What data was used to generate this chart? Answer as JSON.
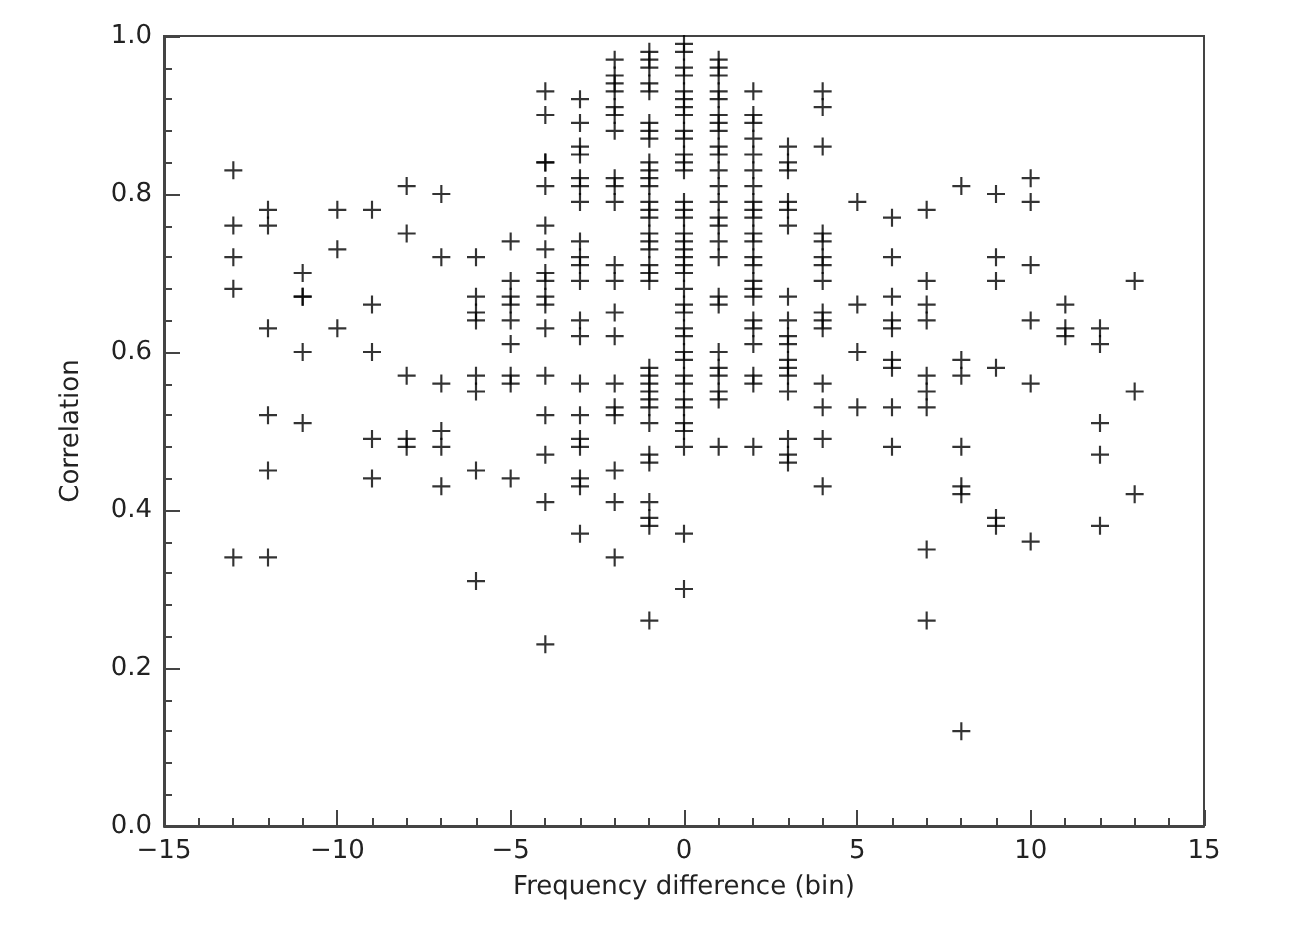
{
  "chart_data": {
    "type": "scatter",
    "xlabel": "Frequency difference (bin)",
    "ylabel": "Correlation",
    "marker": "cross",
    "color": "#000000",
    "xlim": [
      -15,
      15
    ],
    "xticks": [
      -15,
      -10,
      -5,
      0,
      5,
      10,
      15
    ],
    "ylim": [
      0,
      1
    ],
    "yticks": [
      {
        "value": 0,
        "label": "0.0"
      },
      0.2,
      0.4,
      0.6,
      0.8,
      {
        "value": 1,
        "label": "1.0"
      }
    ],
    "x": [
      -13,
      -13,
      -13,
      -13,
      -13,
      -12,
      -12,
      -12,
      -12,
      -12,
      -12,
      -11,
      -11,
      -11,
      -11,
      -11,
      -10,
      -10,
      -10,
      -9,
      -9,
      -9,
      -9,
      -9,
      -8,
      -8,
      -8,
      -8,
      -8,
      -7,
      -7,
      -7,
      -7,
      -7,
      -7,
      -6,
      -6,
      -6,
      -6,
      -6,
      -6,
      -6,
      -6,
      -5,
      -5,
      -5,
      -5,
      -5,
      -5,
      -5,
      -5,
      -5,
      -4,
      -4,
      -4,
      -4,
      -4,
      -4,
      -4,
      -4,
      -4,
      -4,
      -4,
      -4,
      -4,
      -4,
      -4,
      -4,
      -4,
      -3,
      -3,
      -3,
      -3,
      -3,
      -3,
      -3,
      -3,
      -3,
      -3,
      -3,
      -3,
      -3,
      -3,
      -3,
      -3,
      -3,
      -3,
      -3,
      -3,
      -2,
      -2,
      -2,
      -2,
      -2,
      -2,
      -2,
      -2,
      -2,
      -2,
      -2,
      -2,
      -2,
      -2,
      -2,
      -2,
      -2,
      -2,
      -2,
      -2,
      -1,
      -1,
      -1,
      -1,
      -1,
      -1,
      -1,
      -1,
      -1,
      -1,
      -1,
      -1,
      -1,
      -1,
      -1,
      -1,
      -1,
      -1,
      -1,
      -1,
      -1,
      -1,
      -1,
      -1,
      -1,
      -1,
      -1,
      -1,
      -1,
      -1,
      -1,
      -1,
      -1,
      -1,
      0,
      0,
      0,
      0,
      0,
      0,
      0,
      0,
      0,
      0,
      0,
      0,
      0,
      0,
      0,
      0,
      0,
      0,
      0,
      0,
      0,
      0,
      0,
      0,
      0,
      0,
      0,
      0,
      0,
      0,
      0,
      0,
      0,
      0,
      0,
      0,
      0,
      0,
      1,
      1,
      1,
      1,
      1,
      1,
      1,
      1,
      1,
      1,
      1,
      1,
      1,
      1,
      1,
      1,
      1,
      1,
      1,
      1,
      1,
      1,
      1,
      1,
      1,
      2,
      2,
      2,
      2,
      2,
      2,
      2,
      2,
      2,
      2,
      2,
      2,
      2,
      2,
      2,
      2,
      2,
      2,
      2,
      2,
      2,
      2,
      2,
      3,
      3,
      3,
      3,
      3,
      3,
      3,
      3,
      3,
      3,
      3,
      3,
      3,
      3,
      3,
      3,
      3,
      4,
      4,
      4,
      4,
      4,
      4,
      4,
      4,
      4,
      4,
      4,
      4,
      4,
      4,
      4,
      5,
      5,
      5,
      5,
      6,
      6,
      6,
      6,
      6,
      6,
      6,
      6,
      6,
      7,
      7,
      7,
      7,
      7,
      7,
      7,
      7,
      7,
      8,
      8,
      8,
      8,
      8,
      8,
      8,
      9,
      9,
      9,
      9,
      9,
      9,
      10,
      10,
      10,
      10,
      10,
      10,
      11,
      11,
      11,
      12,
      12,
      12,
      12,
      12,
      13,
      13,
      13
    ],
    "values": [
      0.83,
      0.76,
      0.72,
      0.68,
      0.34,
      0.78,
      0.76,
      0.63,
      0.52,
      0.45,
      0.34,
      0.7,
      0.67,
      0.67,
      0.6,
      0.51,
      0.78,
      0.73,
      0.63,
      0.78,
      0.66,
      0.6,
      0.49,
      0.44,
      0.81,
      0.75,
      0.57,
      0.49,
      0.48,
      0.8,
      0.72,
      0.56,
      0.5,
      0.48,
      0.43,
      0.72,
      0.67,
      0.65,
      0.64,
      0.57,
      0.55,
      0.45,
      0.31,
      0.74,
      0.69,
      0.67,
      0.66,
      0.64,
      0.61,
      0.57,
      0.56,
      0.44,
      0.93,
      0.9,
      0.84,
      0.84,
      0.81,
      0.76,
      0.73,
      0.7,
      0.69,
      0.67,
      0.66,
      0.63,
      0.57,
      0.52,
      0.47,
      0.41,
      0.23,
      0.92,
      0.89,
      0.86,
      0.85,
      0.82,
      0.81,
      0.79,
      0.74,
      0.72,
      0.71,
      0.69,
      0.64,
      0.62,
      0.56,
      0.52,
      0.49,
      0.48,
      0.44,
      0.43,
      0.37,
      0.97,
      0.95,
      0.94,
      0.93,
      0.91,
      0.9,
      0.88,
      0.82,
      0.81,
      0.79,
      0.71,
      0.69,
      0.65,
      0.62,
      0.56,
      0.53,
      0.52,
      0.45,
      0.41,
      0.34,
      0.98,
      0.97,
      0.96,
      0.94,
      0.93,
      0.89,
      0.88,
      0.87,
      0.84,
      0.83,
      0.82,
      0.81,
      0.79,
      0.78,
      0.77,
      0.75,
      0.74,
      0.73,
      0.71,
      0.7,
      0.69,
      0.58,
      0.57,
      0.56,
      0.55,
      0.54,
      0.53,
      0.51,
      0.47,
      0.46,
      0.41,
      0.39,
      0.38,
      0.26,
      0.99,
      0.98,
      0.96,
      0.95,
      0.93,
      0.92,
      0.91,
      0.9,
      0.88,
      0.87,
      0.85,
      0.84,
      0.83,
      0.79,
      0.78,
      0.77,
      0.75,
      0.74,
      0.73,
      0.72,
      0.71,
      0.7,
      0.68,
      0.66,
      0.65,
      0.63,
      0.62,
      0.6,
      0.59,
      0.57,
      0.56,
      0.54,
      0.53,
      0.51,
      0.5,
      0.48,
      0.37,
      0.3,
      0.97,
      0.96,
      0.95,
      0.93,
      0.92,
      0.9,
      0.89,
      0.88,
      0.86,
      0.85,
      0.83,
      0.81,
      0.79,
      0.77,
      0.76,
      0.74,
      0.72,
      0.67,
      0.66,
      0.6,
      0.58,
      0.57,
      0.55,
      0.54,
      0.48,
      0.93,
      0.9,
      0.89,
      0.87,
      0.85,
      0.83,
      0.81,
      0.79,
      0.78,
      0.77,
      0.75,
      0.74,
      0.72,
      0.71,
      0.69,
      0.68,
      0.67,
      0.64,
      0.63,
      0.61,
      0.57,
      0.56,
      0.48,
      0.86,
      0.84,
      0.83,
      0.79,
      0.78,
      0.76,
      0.67,
      0.64,
      0.62,
      0.61,
      0.59,
      0.58,
      0.57,
      0.55,
      0.49,
      0.47,
      0.46,
      0.93,
      0.91,
      0.86,
      0.75,
      0.74,
      0.72,
      0.71,
      0.69,
      0.65,
      0.64,
      0.63,
      0.56,
      0.53,
      0.49,
      0.43,
      0.79,
      0.66,
      0.6,
      0.53,
      0.77,
      0.72,
      0.67,
      0.64,
      0.63,
      0.59,
      0.58,
      0.53,
      0.48,
      0.78,
      0.69,
      0.66,
      0.64,
      0.57,
      0.55,
      0.53,
      0.35,
      0.26,
      0.81,
      0.59,
      0.57,
      0.48,
      0.43,
      0.42,
      0.12,
      0.8,
      0.72,
      0.69,
      0.58,
      0.39,
      0.38,
      0.82,
      0.79,
      0.71,
      0.64,
      0.56,
      0.36,
      0.66,
      0.63,
      0.62,
      0.63,
      0.61,
      0.51,
      0.47,
      0.38,
      0.69,
      0.55,
      0.42
    ]
  }
}
